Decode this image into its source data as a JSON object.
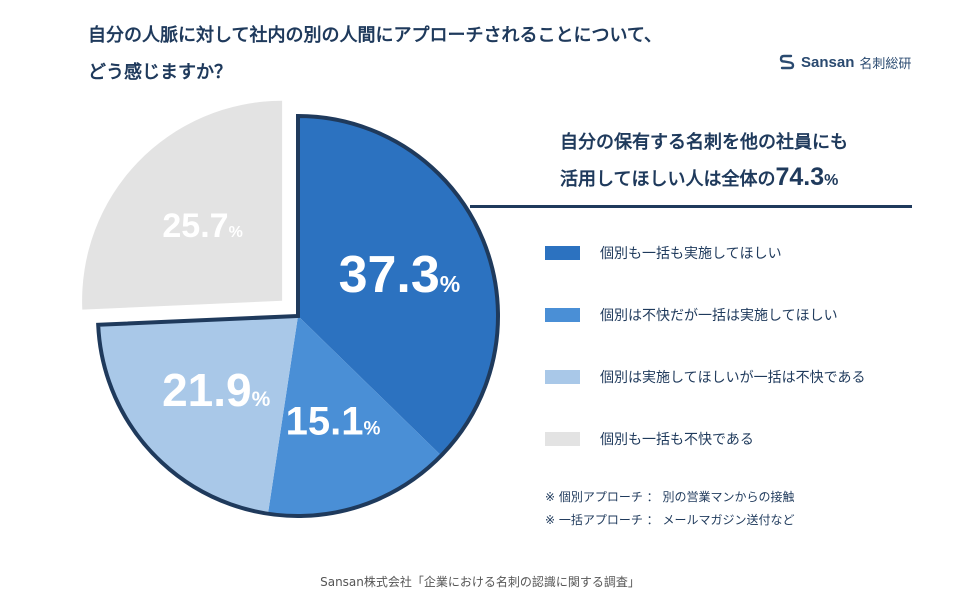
{
  "title": {
    "line1": "自分の人脈に対して社内の別の人間にアプローチされることについて、",
    "line2": "どう感じますか？"
  },
  "brand": {
    "name": "Sansan",
    "sub": "名刺総研",
    "icon": "sansan-logo-icon"
  },
  "headline": {
    "line1": "自分の保有する名刺を他の社員にも",
    "line2_prefix": "活用してほしい人は全体の",
    "value": "74.3",
    "unit": "%"
  },
  "chart_data": {
    "type": "pie",
    "title": "自分の人脈に対して社内の別の人間にアプローチされることについて、どう感じますか？",
    "unit": "%",
    "slices": [
      {
        "label": "個別も一括も実施してほしい",
        "value": 37.3,
        "color": "#2c72c0",
        "text_color": "#ffffff",
        "highlight": true
      },
      {
        "label": "個別は不快だが一括は実施してほしい",
        "value": 15.1,
        "color": "#4a8fd6",
        "text_color": "#ffffff",
        "highlight": true
      },
      {
        "label": "個別は実施してほしいが一括は不快である",
        "value": 21.9,
        "color": "#a9c8e8",
        "text_color": "#ffffff",
        "highlight": true
      },
      {
        "label": "個別も一括も不快である",
        "value": 25.7,
        "color": "#e3e3e3",
        "text_color": "#ffffff",
        "highlight": false
      }
    ],
    "highlight_total": 74.3
  },
  "notes": [
    "※ 個別アプローチ ： 別の営業マンからの接触",
    "※ 一括アプローチ ： メールマガジン送付など"
  ],
  "source": "Sansan株式会社「企業における名刺の認識に関する調査」",
  "colors": {
    "navy": "#1f3a5c",
    "outline": "#1f3a5c"
  }
}
